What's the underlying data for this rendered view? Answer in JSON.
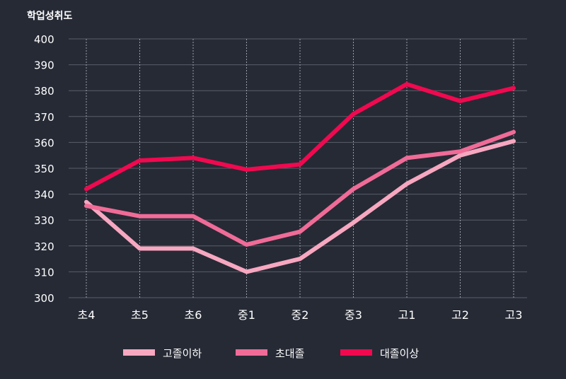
{
  "chart_data": {
    "type": "line",
    "ylabel": "학업성취도",
    "ylim": [
      300,
      400
    ],
    "yticks": [
      300,
      310,
      320,
      330,
      340,
      350,
      360,
      370,
      380,
      390,
      400
    ],
    "categories": [
      "초4",
      "초5",
      "초6",
      "중1",
      "중2",
      "중3",
      "고1",
      "고2",
      "고3"
    ],
    "grid": {
      "horizontal": true,
      "vertical_dotted": true
    },
    "legend_position": "bottom",
    "series": [
      {
        "name": "고졸이하",
        "color": "#f7a7c0",
        "values": [
          337,
          319,
          319,
          310,
          315,
          329,
          344,
          355,
          360.5
        ]
      },
      {
        "name": "초대졸",
        "color": "#f06b97",
        "values": [
          335.5,
          331.5,
          331.5,
          320.5,
          325.5,
          342,
          354,
          356.5,
          364
        ]
      },
      {
        "name": "대졸이상",
        "color": "#f0094f",
        "values": [
          342,
          353,
          354,
          349.5,
          351.5,
          371,
          382.5,
          376,
          381
        ]
      }
    ]
  }
}
